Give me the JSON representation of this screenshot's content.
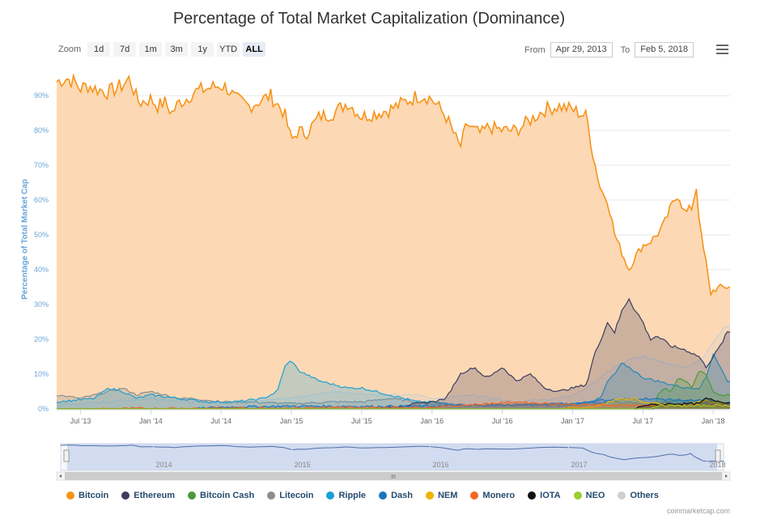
{
  "chart_data": {
    "type": "area",
    "title": "Percentage of Total Market Capitalization (Dominance)",
    "ylabel": "Percentage of Total Market Cap",
    "xlabel": "",
    "ylim": [
      0,
      97
    ],
    "xlim": [
      2013.33,
      2018.12
    ],
    "y_ticks": [
      {
        "v": 0,
        "label": "0%"
      },
      {
        "v": 10,
        "label": "10%"
      },
      {
        "v": 20,
        "label": "20%"
      },
      {
        "v": 30,
        "label": "30%"
      },
      {
        "v": 40,
        "label": "40%"
      },
      {
        "v": 50,
        "label": "50%"
      },
      {
        "v": 60,
        "label": "60%"
      },
      {
        "v": 70,
        "label": "70%"
      },
      {
        "v": 80,
        "label": "80%"
      },
      {
        "v": 90,
        "label": "90%"
      }
    ],
    "x_ticks": [
      {
        "v": 2013.5,
        "label": "Jul '13"
      },
      {
        "v": 2014.0,
        "label": "Jan '14"
      },
      {
        "v": 2014.5,
        "label": "Jul '14"
      },
      {
        "v": 2015.0,
        "label": "Jan '15"
      },
      {
        "v": 2015.5,
        "label": "Jul '15"
      },
      {
        "v": 2016.0,
        "label": "Jan '16"
      },
      {
        "v": 2016.5,
        "label": "Jul '16"
      },
      {
        "v": 2017.0,
        "label": "Jan '17"
      },
      {
        "v": 2017.5,
        "label": "Jul '17"
      },
      {
        "v": 2018.0,
        "label": "Jan '18"
      }
    ],
    "series": [
      {
        "name": "Bitcoin",
        "color": "#f7931a",
        "fill": "#fcd9b4",
        "x": [
          2013.33,
          2013.4,
          2013.45,
          2013.5,
          2013.55,
          2013.6,
          2013.7,
          2013.8,
          2013.85,
          2013.9,
          2013.92,
          2014.0,
          2014.05,
          2014.1,
          2014.15,
          2014.2,
          2014.25,
          2014.3,
          2014.4,
          2014.5,
          2014.55,
          2014.6,
          2014.7,
          2014.8,
          2014.85,
          2014.95,
          2015.0,
          2015.05,
          2015.1,
          2015.2,
          2015.3,
          2015.4,
          2015.45,
          2015.5,
          2015.6,
          2015.7,
          2015.75,
          2015.8,
          2015.9,
          2015.95,
          2016.0,
          2016.1,
          2016.2,
          2016.25,
          2016.3,
          2016.35,
          2016.4,
          2016.5,
          2016.6,
          2016.7,
          2016.8,
          2016.9,
          2017.0,
          2017.1,
          2017.15,
          2017.2,
          2017.25,
          2017.3,
          2017.35,
          2017.4,
          2017.45,
          2017.5,
          2017.55,
          2017.6,
          2017.65,
          2017.7,
          2017.75,
          2017.8,
          2017.85,
          2017.88,
          2017.9,
          2017.92,
          2017.95,
          2017.98,
          2018.0,
          2018.05,
          2018.1
        ],
        "values": [
          94,
          95,
          94,
          92,
          93,
          92,
          91,
          93,
          95,
          89,
          88,
          89,
          87,
          88,
          85,
          88,
          89,
          91,
          92,
          93,
          92,
          89,
          87,
          89,
          90,
          85,
          77,
          80,
          79,
          84,
          85,
          88,
          86,
          84,
          85,
          86,
          87,
          88,
          90,
          90,
          89,
          84,
          75,
          82,
          80,
          79,
          81,
          80,
          80,
          83,
          86,
          87,
          86,
          84,
          72,
          63,
          60,
          50,
          45,
          40,
          44,
          47,
          48,
          50,
          53,
          58,
          62,
          56,
          58,
          64,
          55,
          48,
          42,
          33,
          34,
          35,
          35
        ]
      },
      {
        "name": "Ethereum",
        "color": "#3c3c5e",
        "x": [
          2013.33,
          2015.6,
          2015.8,
          2016.0,
          2016.1,
          2016.2,
          2016.25,
          2016.3,
          2016.35,
          2016.4,
          2016.5,
          2016.6,
          2016.7,
          2016.8,
          2016.9,
          2017.0,
          2017.1,
          2017.15,
          2017.2,
          2017.25,
          2017.3,
          2017.35,
          2017.4,
          2017.45,
          2017.5,
          2017.55,
          2017.6,
          2017.7,
          2017.8,
          2017.85,
          2017.9,
          2017.95,
          2018.0,
          2018.05,
          2018.1
        ],
        "values": [
          0,
          0,
          1,
          2,
          3,
          10,
          11,
          12,
          10,
          9,
          12,
          8,
          10,
          6,
          5,
          6,
          7,
          15,
          20,
          25,
          22,
          28,
          32,
          28,
          25,
          20,
          21,
          18,
          17,
          16,
          15,
          12,
          15,
          18,
          22
        ]
      },
      {
        "name": "Bitcoin Cash",
        "color": "#4a9a3a",
        "x": [
          2013.33,
          2017.58,
          2017.6,
          2017.65,
          2017.7,
          2017.75,
          2017.8,
          2017.85,
          2017.9,
          2017.95,
          2018.0,
          2018.05,
          2018.1
        ],
        "values": [
          0,
          0,
          4,
          6,
          5,
          9,
          8,
          6,
          11,
          10,
          5,
          4,
          4
        ]
      },
      {
        "name": "Litecoin",
        "color": "#8e8e8e",
        "x": [
          2013.33,
          2013.5,
          2013.7,
          2013.8,
          2013.9,
          2014.0,
          2014.1,
          2014.2,
          2014.3,
          2014.5,
          2014.7,
          2015.0,
          2015.3,
          2015.5,
          2015.7,
          2016.0,
          2016.5,
          2017.0,
          2017.3,
          2017.5,
          2017.7,
          2017.9,
          2018.0,
          2018.1
        ],
        "values": [
          4,
          3,
          5,
          6,
          4,
          5,
          4,
          3,
          3,
          2,
          2,
          1.5,
          2,
          2,
          3,
          1.5,
          1,
          1.5,
          2,
          1.5,
          2,
          2.5,
          2,
          1.5
        ]
      },
      {
        "name": "Ripple",
        "color": "#1aa0d6",
        "x": [
          2013.33,
          2013.6,
          2013.7,
          2013.8,
          2013.9,
          2014.0,
          2014.2,
          2014.4,
          2014.6,
          2014.8,
          2014.9,
          2014.95,
          2015.0,
          2015.05,
          2015.1,
          2015.2,
          2015.3,
          2015.4,
          2015.5,
          2015.6,
          2015.7,
          2015.8,
          2015.9,
          2016.0,
          2016.2,
          2016.4,
          2016.6,
          2016.8,
          2017.0,
          2017.1,
          2017.2,
          2017.25,
          2017.3,
          2017.35,
          2017.4,
          2017.5,
          2017.6,
          2017.7,
          2017.8,
          2017.9,
          2017.95,
          2018.0,
          2018.05,
          2018.1
        ],
        "values": [
          2,
          3,
          6,
          5,
          3,
          4,
          3,
          2,
          2,
          3,
          5,
          12,
          14,
          11,
          10,
          8,
          7,
          6,
          6,
          5,
          4,
          3,
          2,
          2,
          1,
          1,
          1,
          1,
          1,
          2,
          3,
          8,
          10,
          13,
          12,
          9,
          8,
          7,
          6,
          6,
          9,
          16,
          12,
          8
        ]
      },
      {
        "name": "Dash",
        "color": "#1c75bc",
        "x": [
          2013.33,
          2014.3,
          2014.5,
          2015.0,
          2015.5,
          2016.0,
          2016.5,
          2017.0,
          2017.2,
          2017.5,
          2017.8,
          2018.0,
          2018.1
        ],
        "values": [
          0,
          0,
          0.5,
          0.8,
          0.7,
          0.8,
          1.2,
          1.5,
          2.5,
          3,
          2.5,
          2,
          1.5
        ]
      },
      {
        "name": "NEM",
        "color": "#f0b400",
        "x": [
          2013.33,
          2016.9,
          2017.0,
          2017.2,
          2017.3,
          2017.45,
          2017.5,
          2017.6,
          2017.8,
          2017.95,
          2018.05,
          2018.1
        ],
        "values": [
          0,
          0,
          0.3,
          1,
          2.5,
          3,
          2,
          1.5,
          1,
          2.5,
          1.5,
          1
        ]
      },
      {
        "name": "Monero",
        "color": "#f26822",
        "x": [
          2013.33,
          2014.4,
          2015.0,
          2016.0,
          2016.6,
          2017.0,
          2017.5,
          2018.0,
          2018.1
        ],
        "values": [
          0,
          0.2,
          0.3,
          0.5,
          2,
          1.2,
          1,
          1,
          1
        ]
      },
      {
        "name": "IOTA",
        "color": "#111111",
        "x": [
          2013.33,
          2017.45,
          2017.5,
          2017.7,
          2017.9,
          2017.95,
          2018.0,
          2018.1
        ],
        "values": [
          0,
          0,
          1,
          1.5,
          1.5,
          3,
          2.5,
          1.8
        ]
      },
      {
        "name": "NEO",
        "color": "#9acd32",
        "x": [
          2013.33,
          2017.55,
          2017.6,
          2017.8,
          2018.0,
          2018.1
        ],
        "values": [
          0,
          0,
          1,
          0.8,
          1,
          1
        ]
      },
      {
        "name": "Others",
        "color": "#cfcfcf",
        "x": [
          2013.33,
          2014.0,
          2014.3,
          2014.6,
          2014.9,
          2015.0,
          2015.3,
          2015.6,
          2015.9,
          2016.0,
          2016.3,
          2016.6,
          2016.9,
          2017.0,
          2017.1,
          2017.2,
          2017.3,
          2017.4,
          2017.5,
          2017.6,
          2017.7,
          2017.8,
          2017.9,
          2017.95,
          2018.0,
          2018.05,
          2018.1
        ],
        "values": [
          1,
          3,
          2,
          2,
          3,
          3,
          5,
          4,
          4,
          3,
          4,
          2,
          3,
          4,
          6,
          9,
          12,
          14,
          15,
          14,
          13,
          12,
          14,
          16,
          19,
          22,
          24
        ]
      }
    ],
    "navigator_ticks": [
      {
        "v": 2014.0,
        "label": "2014"
      },
      {
        "v": 2015.0,
        "label": "2015"
      },
      {
        "v": 2016.0,
        "label": "2016"
      },
      {
        "v": 2017.0,
        "label": "2017"
      },
      {
        "v": 2018.0,
        "label": "2018"
      }
    ]
  },
  "toolbar": {
    "zoom_label": "Zoom",
    "zoom_buttons": [
      "1d",
      "7d",
      "1m",
      "3m",
      "1y",
      "YTD",
      "ALL"
    ],
    "selected": "ALL",
    "from_label": "From",
    "from_value": "Apr 29, 2013",
    "to_label": "To",
    "to_value": "Feb 5, 2018"
  },
  "legend": [
    "Bitcoin",
    "Ethereum",
    "Bitcoin Cash",
    "Litecoin",
    "Ripple",
    "Dash",
    "NEM",
    "Monero",
    "IOTA",
    "NEO",
    "Others"
  ],
  "credit": "coinmarketcap.com",
  "scrollbar": {
    "grip": "III"
  }
}
